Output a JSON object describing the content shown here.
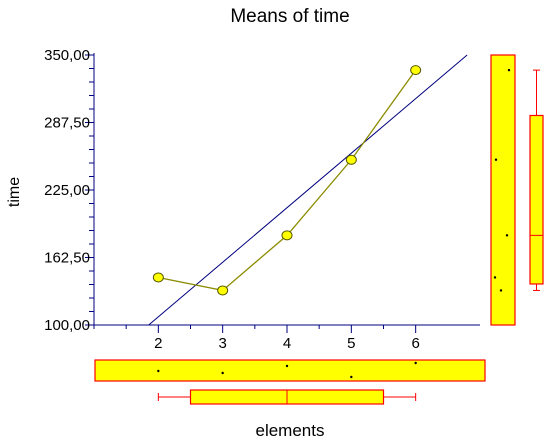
{
  "chart_data": {
    "type": "line",
    "title": "Means of time",
    "xlabel": "elements",
    "ylabel": "time",
    "x": [
      2,
      3,
      4,
      5,
      6
    ],
    "x_ticks": [
      "2",
      "3",
      "4",
      "5",
      "6"
    ],
    "y_ticks": [
      "100,00",
      "162,50",
      "225,00",
      "287,50",
      "350,00"
    ],
    "xlim": [
      1.0,
      7.0
    ],
    "ylim": [
      100,
      350
    ],
    "series": [
      {
        "values": [
          144,
          132,
          183,
          253,
          336
        ]
      }
    ],
    "fit_line": {
      "x": [
        1.85,
        6.8
      ],
      "y": [
        100,
        350
      ]
    },
    "marginal_y": {
      "points": [
        144,
        132,
        183,
        253,
        336
      ],
      "boxplot": {
        "min": 132,
        "q1": 138,
        "median": 183,
        "q3": 294,
        "max": 336
      }
    },
    "marginal_x": {
      "boxplot": {
        "min": 2,
        "q1": 2.5,
        "median": 4,
        "q3": 5.5,
        "max": 6
      }
    },
    "grid": false,
    "legend": "none",
    "colors": {
      "series_line": "#8b8b00",
      "marker_fill": "#ffff00",
      "fit_line": "#000080",
      "axis": "#000080",
      "marginal_fill": "#ffff00",
      "marginal_stroke": "#ff0000"
    }
  }
}
